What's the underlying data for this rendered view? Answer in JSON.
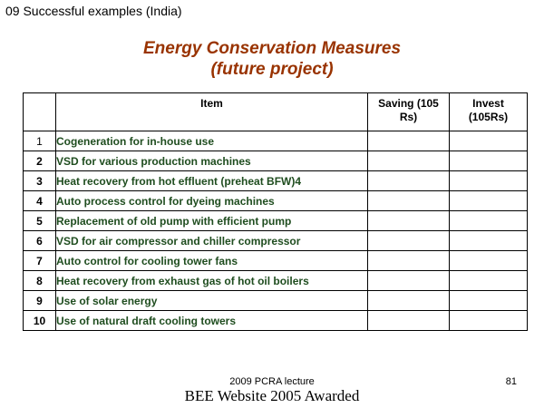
{
  "colors": {
    "title": "#993300",
    "item_text": "#1f4d1f",
    "border": "#000000"
  },
  "header": {
    "section_label": "09 Successful examples (India)"
  },
  "title": {
    "line1": "Energy Conservation Measures",
    "line2": "(future project)"
  },
  "table": {
    "columns": {
      "num": "",
      "item": "Item",
      "saving_line1": "Saving (105",
      "saving_line2": "Rs)",
      "invest_line1": "Invest",
      "invest_line2": "(105Rs)"
    },
    "rows": [
      {
        "num": "1",
        "item": "Cogeneration for in-house use",
        "saving": "",
        "invest": ""
      },
      {
        "num": "2",
        "item": "VSD for various production machines",
        "saving": "",
        "invest": ""
      },
      {
        "num": "3",
        "item": "Heat recovery from hot effluent (preheat BFW)4",
        "saving": "",
        "invest": ""
      },
      {
        "num": "4",
        "item": "Auto process control for dyeing machines",
        "saving": "",
        "invest": ""
      },
      {
        "num": "5",
        "item": "Replacement of old pump with efficient pump",
        "saving": "",
        "invest": ""
      },
      {
        "num": "6",
        "item": "VSD for air compressor and chiller compressor",
        "saving": "",
        "invest": ""
      },
      {
        "num": "7",
        "item": "Auto control for cooling tower fans",
        "saving": "",
        "invest": ""
      },
      {
        "num": "8",
        "item": "Heat recovery from exhaust gas of hot oil boilers",
        "saving": "",
        "invest": ""
      },
      {
        "num": "9",
        "item": "Use of solar energy",
        "saving": "",
        "invest": ""
      },
      {
        "num": "10",
        "item": "Use of natural draft cooling towers",
        "saving": "",
        "invest": ""
      }
    ]
  },
  "footer": {
    "lecture": "2009 PCRA lecture",
    "page_number": "81",
    "award": "BEE Website 2005 Awarded"
  }
}
